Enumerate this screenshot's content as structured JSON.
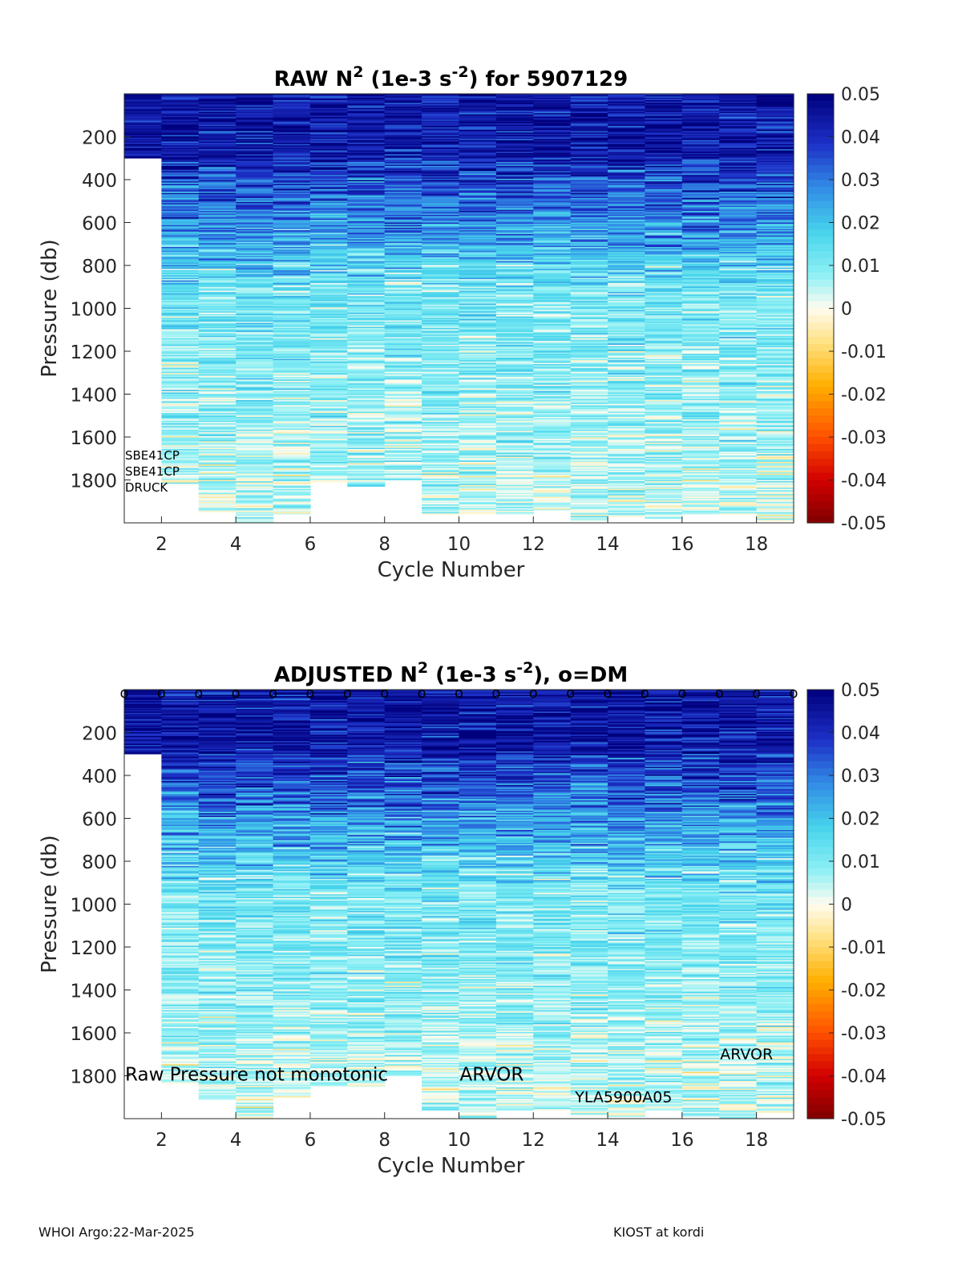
{
  "chart_data": [
    {
      "type": "heatmap",
      "title": "RAW N² (1e-3 s⁻²) for 5907129",
      "title_parts": {
        "pre": "RAW N",
        "sup1": "2",
        "mid": " (1e-3 s",
        "sup2": "-2",
        "post": ") for 5907129"
      },
      "xlabel": "Cycle Number",
      "ylabel": "Pressure (db)",
      "xlim": [
        1,
        19
      ],
      "ylim": [
        0,
        2000
      ],
      "y_reversed": true,
      "xticks": [
        "2",
        "4",
        "6",
        "8",
        "10",
        "12",
        "14",
        "16",
        "18"
      ],
      "yticks": [
        "200",
        "400",
        "600",
        "800",
        "1000",
        "1200",
        "1400",
        "1600",
        "1800"
      ],
      "colorbar": {
        "min": -0.05,
        "max": 0.05,
        "ticks": [
          "0.05",
          "0.04",
          "0.03",
          "0.02",
          "0.01",
          "0",
          "-0.01",
          "-0.02",
          "-0.03",
          "-0.04",
          "-0.05"
        ]
      },
      "cycles": [
        1,
        2,
        3,
        4,
        5,
        6,
        7,
        8,
        9,
        10,
        11,
        12,
        13,
        14,
        15,
        16,
        17,
        18
      ],
      "max_pressure": [
        300,
        1820,
        1950,
        2000,
        1960,
        1810,
        1830,
        1800,
        1960,
        1960,
        1960,
        1940,
        1990,
        1970,
        1980,
        1960,
        1960,
        1990
      ],
      "annotations": [
        "SBE41CP",
        "SBE41CP",
        "DRUCK"
      ],
      "dm_markers": false
    },
    {
      "type": "heatmap",
      "title": "ADJUSTED N² (1e-3 s⁻²), o=DM",
      "title_parts": {
        "pre": "ADJUSTED N",
        "sup1": "2",
        "mid": " (1e-3 s",
        "sup2": "-2",
        "post": "), o=DM"
      },
      "xlabel": "Cycle Number",
      "ylabel": "Pressure (db)",
      "xlim": [
        1,
        19
      ],
      "ylim": [
        0,
        2000
      ],
      "y_reversed": true,
      "xticks": [
        "2",
        "4",
        "6",
        "8",
        "10",
        "12",
        "14",
        "16",
        "18"
      ],
      "yticks": [
        "200",
        "400",
        "600",
        "800",
        "1000",
        "1200",
        "1400",
        "1600",
        "1800"
      ],
      "colorbar": {
        "min": -0.05,
        "max": 0.05,
        "ticks": [
          "0.05",
          "0.04",
          "0.03",
          "0.02",
          "0.01",
          "0",
          "-0.01",
          "-0.02",
          "-0.03",
          "-0.04",
          "-0.05"
        ]
      },
      "cycles": [
        1,
        2,
        3,
        4,
        5,
        6,
        7,
        8,
        9,
        10,
        11,
        12,
        13,
        14,
        15,
        16,
        17,
        18
      ],
      "max_pressure": [
        300,
        1840,
        1910,
        2000,
        1900,
        1850,
        1850,
        1800,
        1960,
        2000,
        1960,
        1960,
        1990,
        1990,
        1960,
        1990,
        2000,
        1970
      ],
      "dm_cycles": [
        1,
        2,
        3,
        4,
        5,
        6,
        7,
        8,
        9,
        10,
        11,
        12,
        13,
        14,
        15,
        16,
        17,
        18,
        19
      ],
      "dm_marker": "o",
      "annotations": [
        {
          "text": "Raw Pressure not monotonic",
          "x": 1,
          "y": 1800
        },
        {
          "text": "ARVOR",
          "x": 10,
          "y": 1800
        },
        {
          "text": "YLA5900A05",
          "x": 13.1,
          "y": 1900
        },
        {
          "text": "ARVOR",
          "x": 17,
          "y": 1700
        }
      ]
    }
  ],
  "footer": {
    "left": "WHOI Argo:22-Mar-2025",
    "right": "KIOST at kordi"
  }
}
